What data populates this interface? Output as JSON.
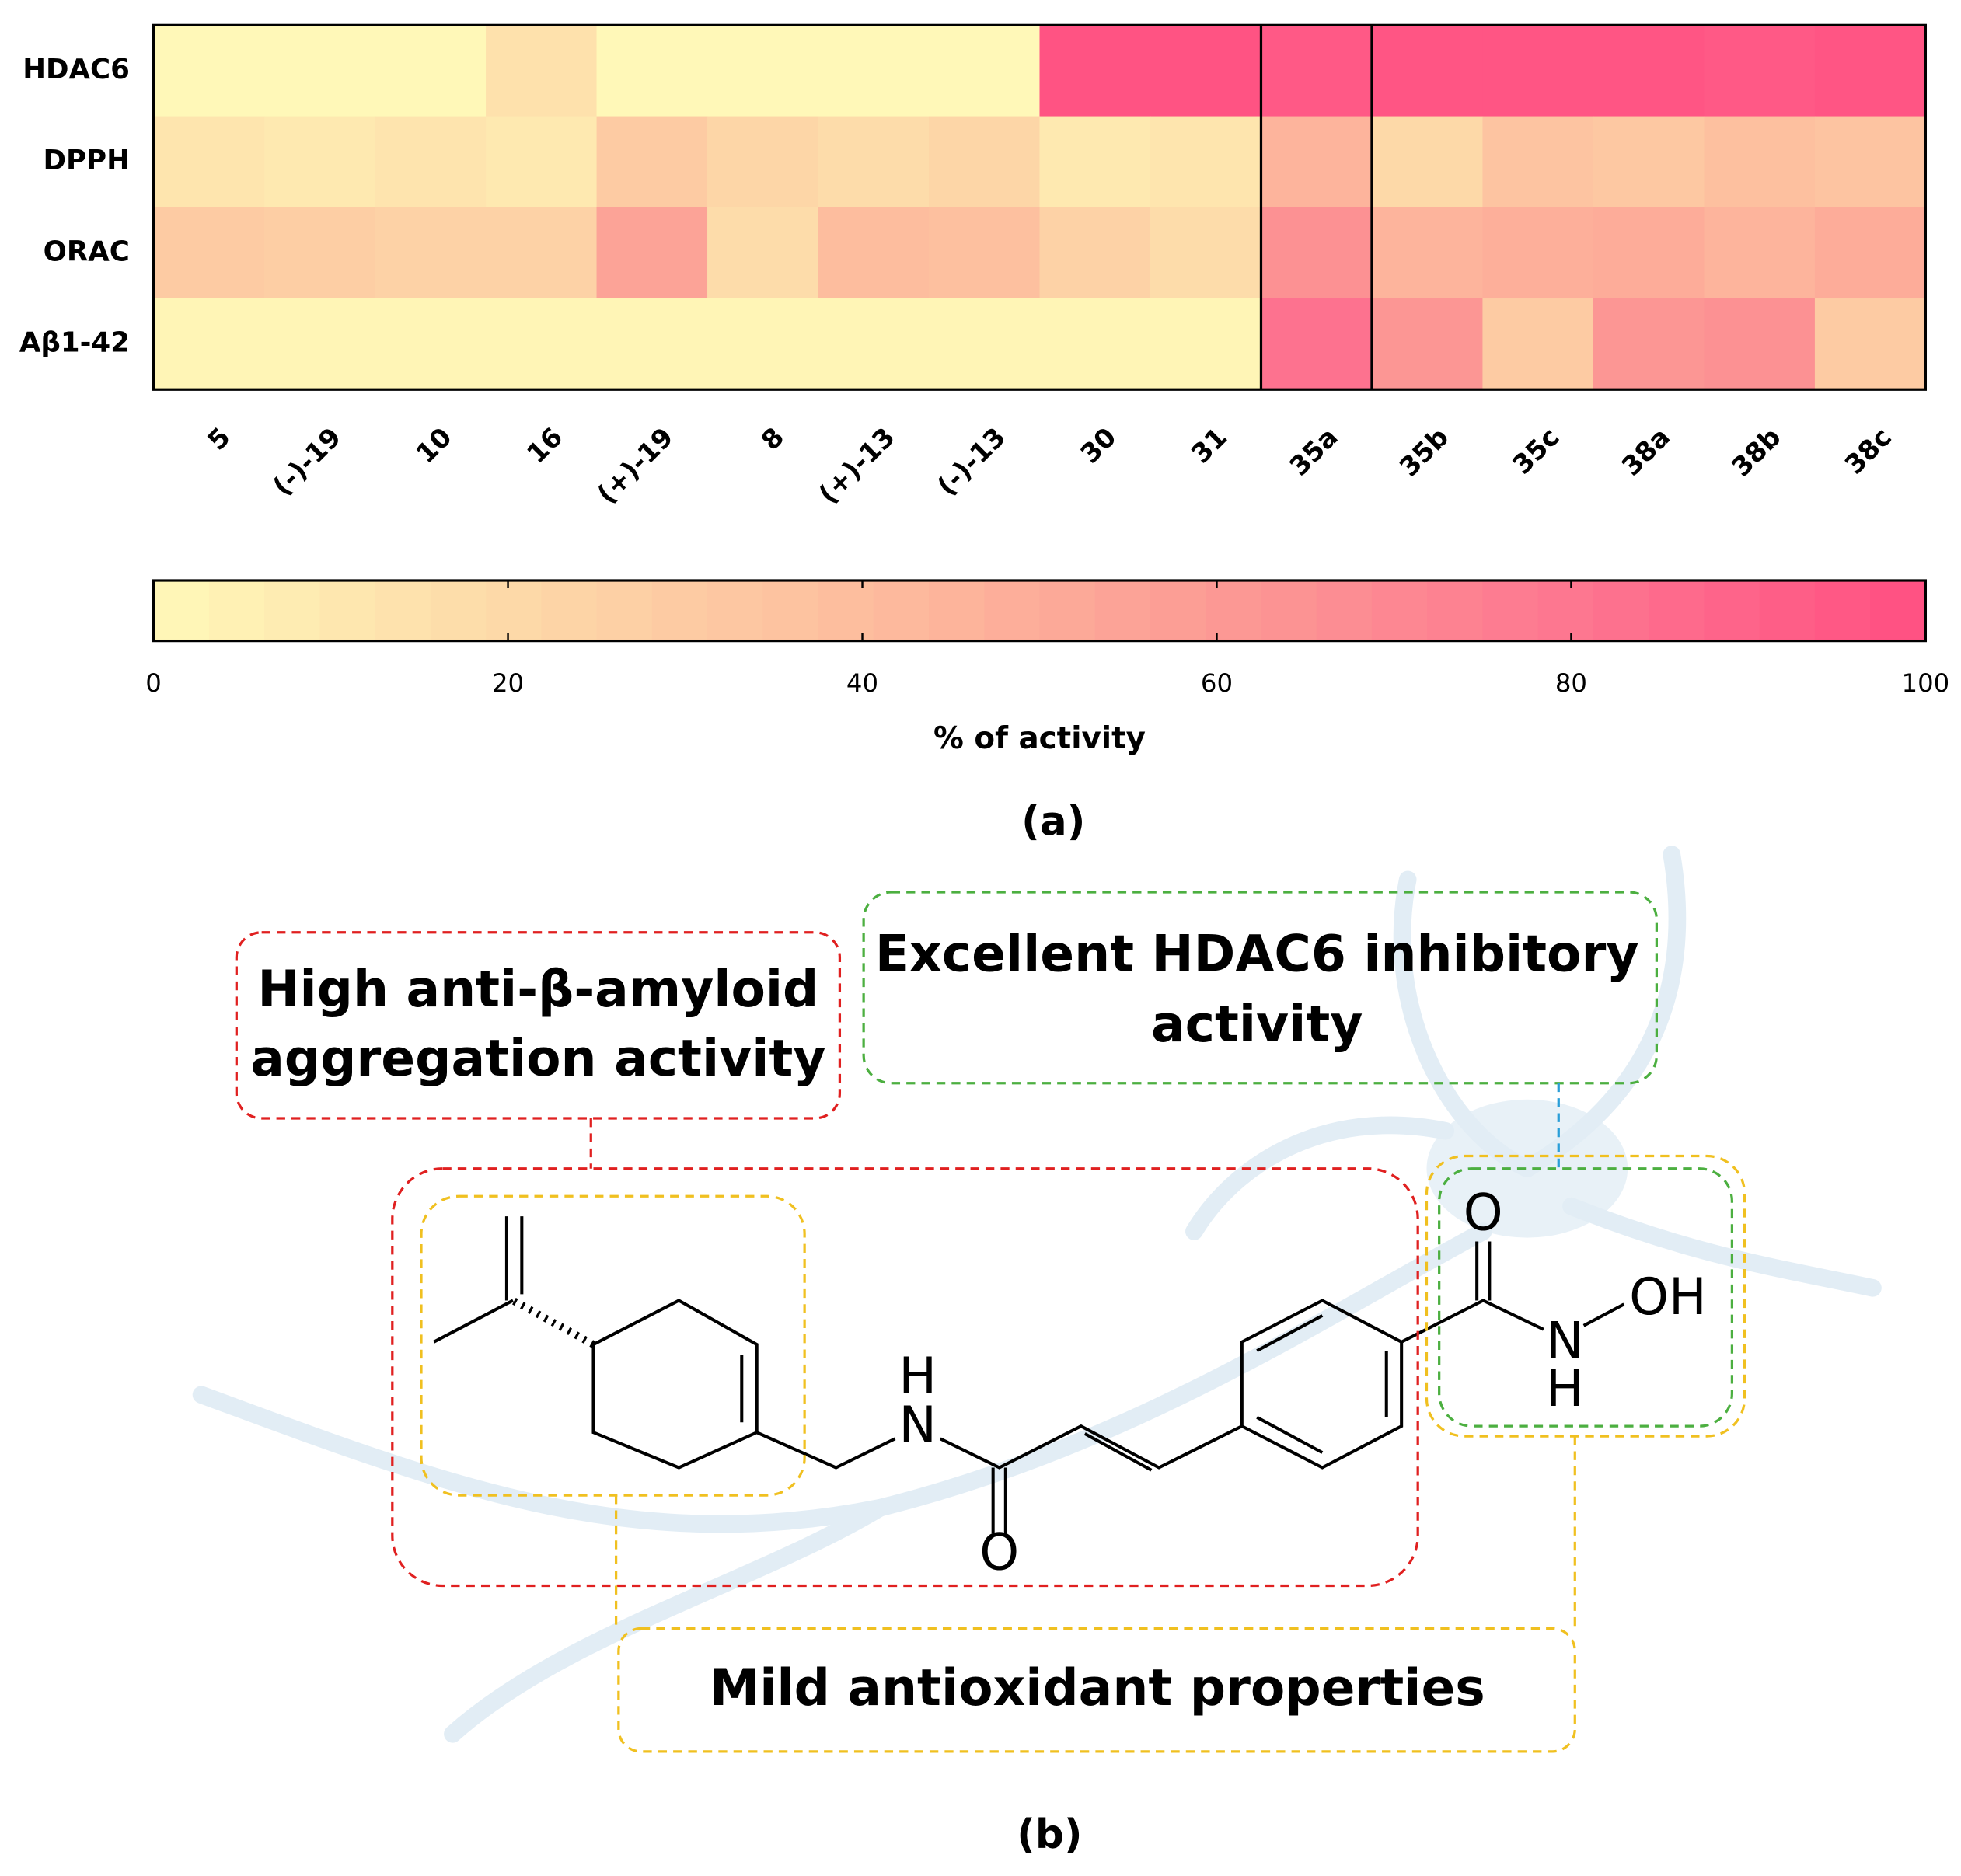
{
  "chart_data": {
    "type": "heatmap",
    "rows": [
      "HDAC6",
      "DPPH",
      "ORAC",
      "Aβ1-42"
    ],
    "categories": [
      "5",
      "(-)-19",
      "10",
      "16",
      "(+)-19",
      "8",
      "(+)-13",
      "(-)-13",
      "30",
      "31",
      "35a",
      "35b",
      "35c",
      "38a",
      "38b",
      "38c"
    ],
    "values": [
      [
        0,
        0,
        0,
        15,
        0,
        0,
        0,
        0,
        98,
        98,
        95,
        97,
        97,
        97,
        95,
        97
      ],
      [
        12,
        10,
        13,
        10,
        30,
        22,
        18,
        22,
        10,
        12,
        45,
        20,
        35,
        32,
        38,
        35
      ],
      [
        30,
        28,
        25,
        25,
        55,
        18,
        40,
        38,
        25,
        18,
        65,
        45,
        48,
        50,
        45,
        50
      ],
      [
        2,
        2,
        2,
        2,
        2,
        2,
        2,
        2,
        2,
        2,
        82,
        62,
        30,
        62,
        65,
        30
      ]
    ],
    "highlight_column": "35a",
    "colorbar": {
      "xlim": [
        0,
        100
      ],
      "xticks": [
        0,
        20,
        40,
        60,
        80,
        100
      ],
      "label": "% of activity",
      "colors": [
        "#fff8b8",
        "#fdd9a8",
        "#fdbd9e",
        "#fc9a94",
        "#fd7690",
        "#ff4f82"
      ]
    }
  },
  "panel_labels": [
    "(a)",
    "(b)"
  ],
  "diagram": {
    "boxes": [
      [
        "High anti-β-amyloid",
        "aggregation activity"
      ],
      [
        "Excellent HDAC6 inhibitory",
        "activity"
      ],
      [
        "Mild antioxidant properties"
      ]
    ],
    "atoms": [
      "H",
      "N",
      "O",
      "O",
      "N",
      "H",
      "OH"
    ]
  }
}
